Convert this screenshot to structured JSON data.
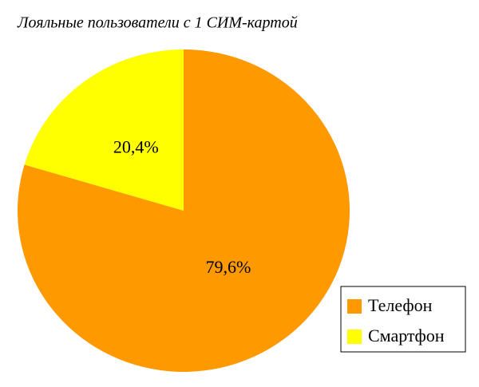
{
  "chart_data": {
    "type": "pie",
    "title": "Лояльные пользователи с 1 СИМ-картой",
    "categories": [
      "Телефон",
      "Смартфон"
    ],
    "values": [
      79.6,
      20.4
    ],
    "value_labels": [
      "79,6%",
      "20,4%"
    ],
    "colors": [
      "#ff9900",
      "#ffff00"
    ],
    "legend": "lower right"
  }
}
